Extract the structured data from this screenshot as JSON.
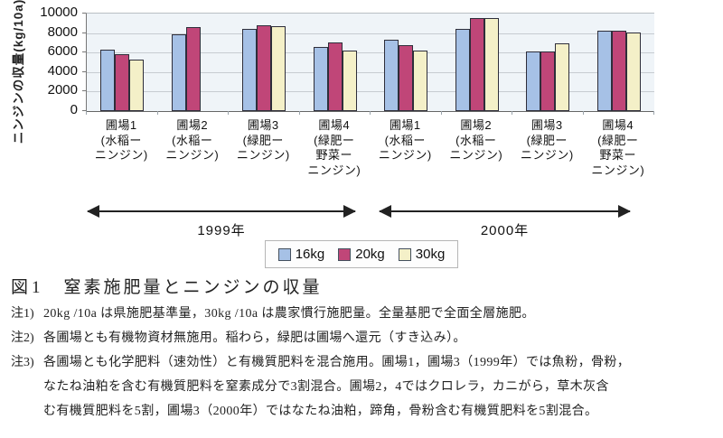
{
  "chart_data": {
    "type": "bar",
    "ylabel": "ニンジンの収量(kg/10a)",
    "ylim": [
      0,
      10000
    ],
    "yticks": [
      0,
      2000,
      4000,
      6000,
      8000,
      10000
    ],
    "grid": true,
    "legend_position": "bottom-center",
    "categories": [
      {
        "lines": [
          "圃場1",
          "(水稲ー",
          "ニンジン)"
        ]
      },
      {
        "lines": [
          "圃場2",
          "(水稲ー",
          "ニンジン)"
        ]
      },
      {
        "lines": [
          "圃場3",
          "(緑肥ー",
          "ニンジン)"
        ]
      },
      {
        "lines": [
          "圃場4",
          "(緑肥ー",
          "野菜ー",
          "ニンジン)"
        ]
      },
      {
        "lines": [
          "圃場1",
          "(水稲ー",
          "ニンジン)"
        ]
      },
      {
        "lines": [
          "圃場2",
          "(水稲ー",
          "ニンジン)"
        ]
      },
      {
        "lines": [
          "圃場3",
          "(緑肥ー",
          "ニンジン)"
        ]
      },
      {
        "lines": [
          "圃場4",
          "(緑肥ー",
          "野菜ー",
          "ニンジン)"
        ]
      }
    ],
    "series": [
      {
        "name": "16kg",
        "color": "#A6C1E6",
        "values": [
          6300,
          7900,
          8400,
          6600,
          7300,
          8400,
          6100,
          8200
        ]
      },
      {
        "name": "20kg",
        "color": "#C04678",
        "values": [
          5800,
          8600,
          8800,
          7000,
          6800,
          9500,
          6100,
          8200
        ]
      },
      {
        "name": "30kg",
        "color": "#F4F0C8",
        "values": [
          5300,
          null,
          8700,
          6200,
          6200,
          9500,
          6900,
          8100
        ]
      }
    ],
    "year_spans": [
      {
        "label": "1999年"
      },
      {
        "label": "2000年"
      }
    ]
  },
  "caption": {
    "label": "図1",
    "text": "窒素施肥量とニンジンの収量"
  },
  "notes": [
    {
      "label": "注1)",
      "lines": [
        "20kg /10a は県施肥基準量，30kg /10a は農家慣行施肥量。全量基肥で全面全層施肥。"
      ]
    },
    {
      "label": "注2)",
      "lines": [
        "各圃場とも有機物資材無施用。稲わら，緑肥は圃場へ還元（すき込み）。"
      ]
    },
    {
      "label": "注3)",
      "lines": [
        "各圃場とも化学肥料（速効性）と有機質肥料を混合施用。圃場1，圃場3（1999年）では魚粉，骨粉，",
        "なたね油粕を含む有機質肥料を窒素成分で3割混合。圃場2，4ではクロレラ，カニがら，草木灰含",
        "む有機質肥料を5割，圃場3（2000年）ではなたね油粕，蹄角，骨粉含む有機質肥料を5割混合。"
      ]
    }
  ],
  "colors": {
    "plot_background": "#EFF4F8",
    "gridline": "#C7CCD1",
    "bar_border": "#2E2E3A"
  }
}
